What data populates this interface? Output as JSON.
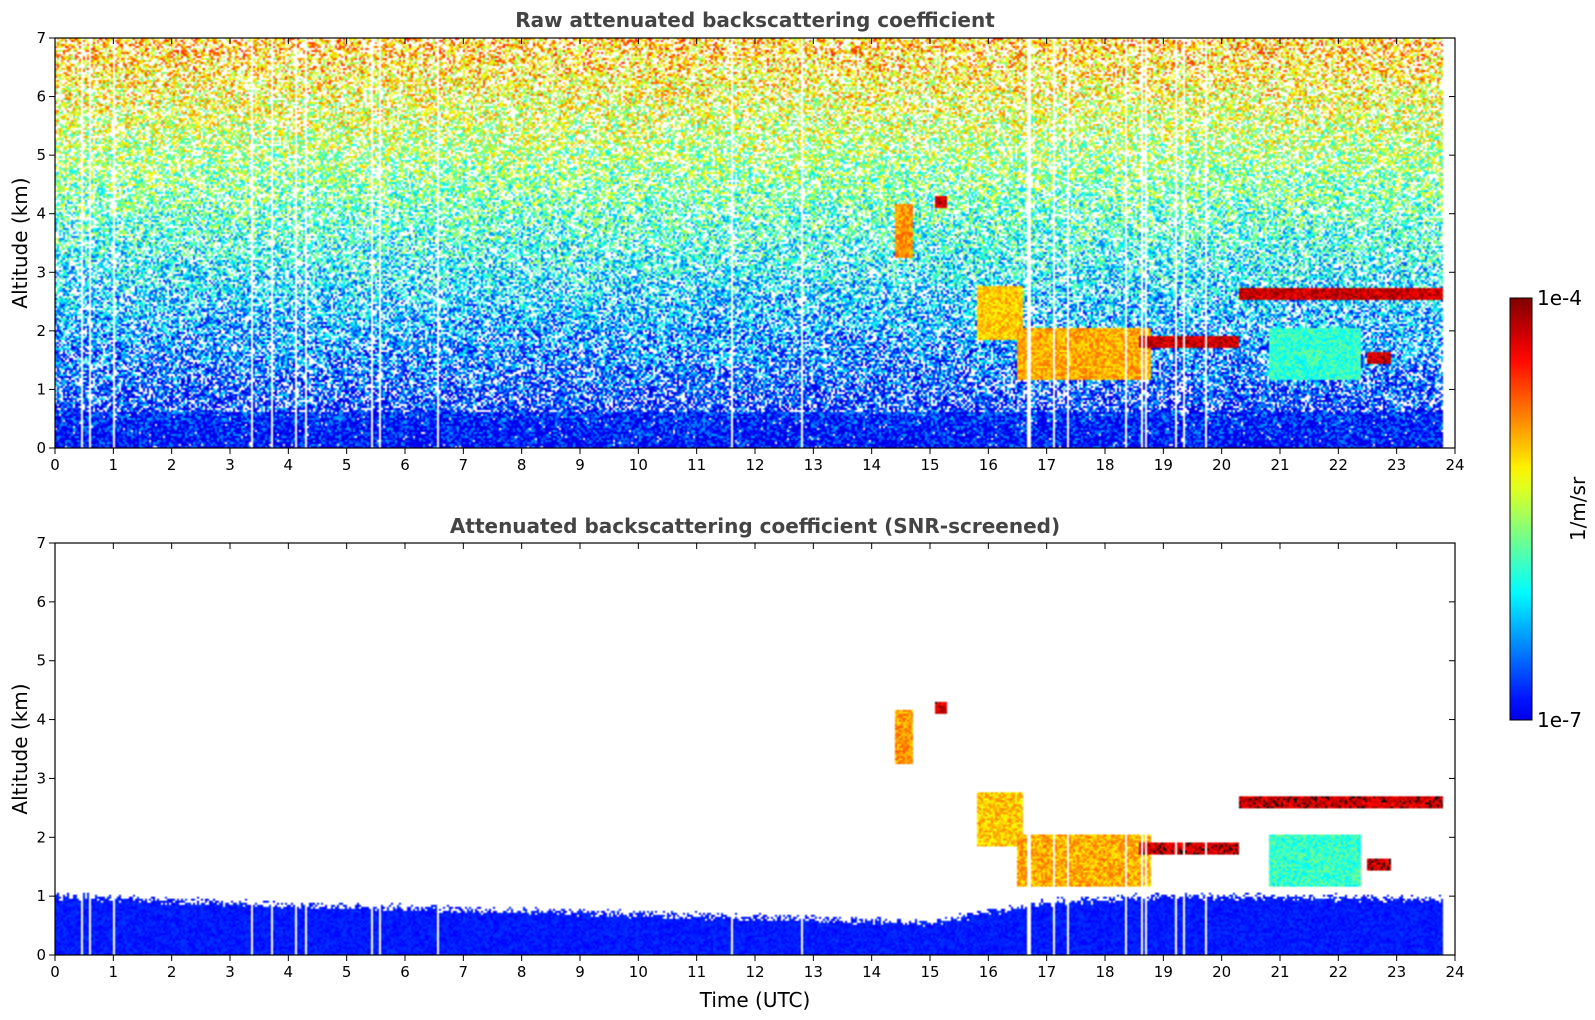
{
  "chart_data": [
    {
      "type": "heatmap",
      "title": "Raw attenuated backscattering coefficient",
      "xlabel": "",
      "ylabel": "Altitude (km)",
      "xlim": [
        0,
        24
      ],
      "ylim": [
        0,
        7
      ],
      "xticks": [
        "0",
        "1",
        "2",
        "3",
        "4",
        "5",
        "6",
        "7",
        "8",
        "9",
        "10",
        "11",
        "12",
        "13",
        "14",
        "15",
        "16",
        "17",
        "18",
        "19",
        "20",
        "21",
        "22",
        "23",
        "24"
      ],
      "yticks": [
        "0",
        "1",
        "2",
        "3",
        "4",
        "5",
        "6",
        "7"
      ],
      "data_end_time": 23.8,
      "screened": false,
      "features": [
        {
          "t0": 20.3,
          "t1": 23.8,
          "alt": 2.62,
          "value": 1.0
        },
        {
          "t0": 18.6,
          "t1": 20.3,
          "alt": 1.8,
          "value": 1.0
        },
        {
          "t0": 15.1,
          "t1": 15.3,
          "alt": 4.2,
          "value": 1.0
        },
        {
          "t0": 22.5,
          "t1": 22.9,
          "alt": 1.55,
          "value": 1.0
        },
        {
          "t0": 16.5,
          "t1": 18.8,
          "alt": 1.6,
          "value": 0.78
        },
        {
          "t0": 20.8,
          "t1": 22.4,
          "alt": 1.6,
          "value": 0.5
        },
        {
          "t0": 14.4,
          "t1": 14.7,
          "alt": 3.7,
          "value": 0.8
        },
        {
          "t0": 15.8,
          "t1": 16.6,
          "alt": 2.3,
          "value": 0.75
        }
      ],
      "gaps": [
        0.45,
        0.57,
        1.0,
        3.35,
        3.7,
        4.1,
        4.3,
        5.4,
        5.55,
        6.55,
        11.6,
        12.8,
        16.65,
        16.7,
        17.1,
        17.35,
        18.35,
        18.6,
        18.7,
        19.2,
        19.35,
        19.7
      ]
    },
    {
      "type": "heatmap",
      "title": "Attenuated backscattering coefficient (SNR-screened)",
      "xlabel": "Time (UTC)",
      "ylabel": "Altitude (km)",
      "xlim": [
        0,
        24
      ],
      "ylim": [
        0,
        7
      ],
      "xticks": [
        "0",
        "1",
        "2",
        "3",
        "4",
        "5",
        "6",
        "7",
        "8",
        "9",
        "10",
        "11",
        "12",
        "13",
        "14",
        "15",
        "16",
        "17",
        "18",
        "19",
        "20",
        "21",
        "22",
        "23",
        "24"
      ],
      "yticks": [
        "0",
        "1",
        "2",
        "3",
        "4",
        "5",
        "6",
        "7"
      ],
      "data_end_time": 23.8,
      "screened": true,
      "boundary_layer_top_km": [
        {
          "t": 0,
          "alt": 1.0
        },
        {
          "t": 4,
          "alt": 0.85
        },
        {
          "t": 10,
          "alt": 0.7
        },
        {
          "t": 15,
          "alt": 0.55
        },
        {
          "t": 17,
          "alt": 0.9
        },
        {
          "t": 19,
          "alt": 1.0
        },
        {
          "t": 23.8,
          "alt": 0.95
        }
      ],
      "features": [
        {
          "t0": 20.3,
          "t1": 23.8,
          "alt": 2.6,
          "value": 1.0
        },
        {
          "t0": 18.6,
          "t1": 20.3,
          "alt": 1.8,
          "value": 1.0
        },
        {
          "t0": 15.1,
          "t1": 15.3,
          "alt": 4.2,
          "value": 1.0
        },
        {
          "t0": 22.5,
          "t1": 22.9,
          "alt": 1.55,
          "value": 1.0
        },
        {
          "t0": 16.5,
          "t1": 18.8,
          "alt": 1.6,
          "value": 0.78
        },
        {
          "t0": 20.8,
          "t1": 22.4,
          "alt": 1.6,
          "value": 0.5
        },
        {
          "t0": 14.4,
          "t1": 14.7,
          "alt": 3.7,
          "value": 0.8
        },
        {
          "t0": 15.8,
          "t1": 16.6,
          "alt": 2.3,
          "value": 0.75
        }
      ],
      "gaps": [
        0.45,
        0.57,
        1.0,
        3.35,
        3.7,
        4.1,
        4.3,
        5.4,
        5.55,
        6.55,
        11.6,
        12.8,
        16.65,
        16.7,
        17.1,
        17.35,
        18.35,
        18.6,
        18.7,
        19.2,
        19.35,
        19.7
      ]
    }
  ],
  "colorbar": {
    "label": "1/m/sr",
    "min_label": "1e-7",
    "max_label": "1e-4",
    "colormap": "jet"
  }
}
